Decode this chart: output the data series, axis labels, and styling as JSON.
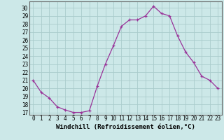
{
  "x": [
    0,
    1,
    2,
    3,
    4,
    5,
    6,
    7,
    8,
    9,
    10,
    11,
    12,
    13,
    14,
    15,
    16,
    17,
    18,
    19,
    20,
    21,
    22,
    23
  ],
  "y": [
    21.0,
    19.5,
    18.8,
    17.7,
    17.3,
    17.0,
    17.0,
    17.2,
    20.3,
    23.0,
    25.3,
    27.7,
    28.5,
    28.5,
    29.0,
    30.2,
    29.3,
    29.0,
    26.5,
    24.5,
    23.2,
    21.5,
    21.0,
    20.0
  ],
  "xlabel": "Windchill (Refroidissement éolien,°C)",
  "ylabel": "",
  "ylim_min": 16.7,
  "ylim_max": 30.8,
  "xlim_min": -0.5,
  "xlim_max": 23.5,
  "yticks": [
    17,
    18,
    19,
    20,
    21,
    22,
    23,
    24,
    25,
    26,
    27,
    28,
    29,
    30
  ],
  "xticks": [
    0,
    1,
    2,
    3,
    4,
    5,
    6,
    7,
    8,
    9,
    10,
    11,
    12,
    13,
    14,
    15,
    16,
    17,
    18,
    19,
    20,
    21,
    22,
    23
  ],
  "line_color": "#993399",
  "marker": "+",
  "bg_color": "#cce8e8",
  "grid_color": "#aacccc",
  "xlabel_fontsize": 6.5,
  "tick_fontsize": 5.5
}
